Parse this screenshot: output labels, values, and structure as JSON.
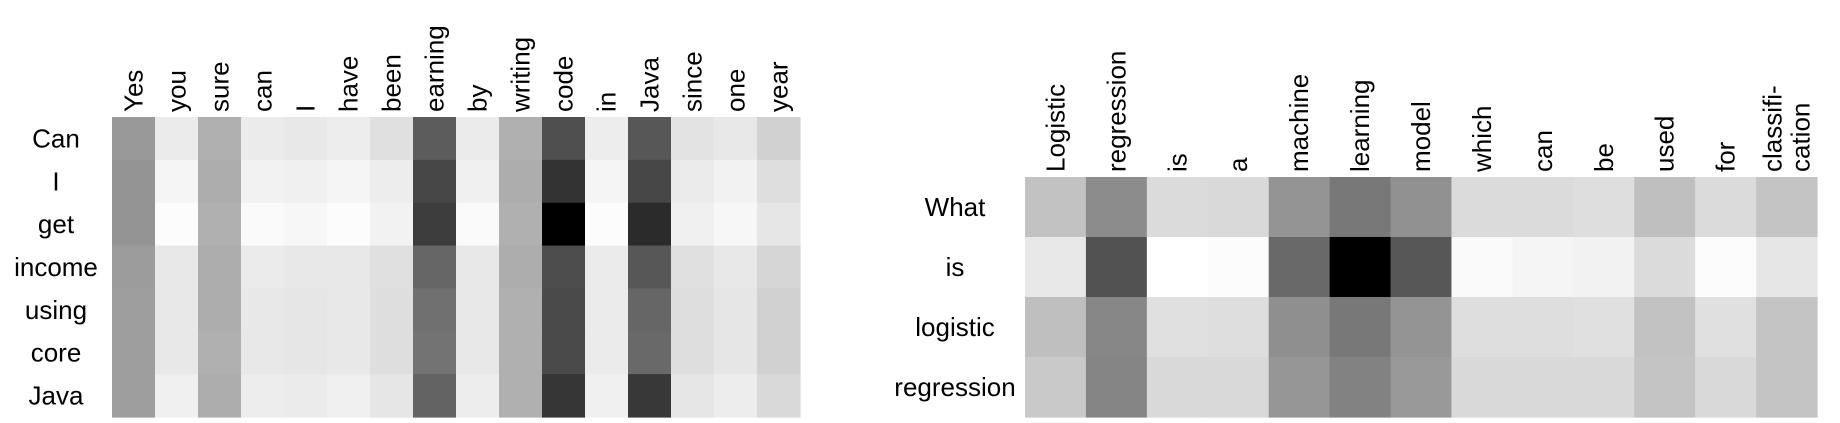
{
  "chart_data": [
    {
      "type": "heatmap",
      "columns": [
        "Yes",
        "you",
        "sure",
        "can",
        "I",
        "have",
        "been",
        "earning",
        "by",
        "writing",
        "code",
        "in",
        "Java",
        "since",
        "one",
        "year"
      ],
      "rows": [
        "Can",
        "I",
        "get",
        "income",
        "using",
        "core",
        "Java"
      ],
      "values": [
        [
          40,
          8,
          31,
          8,
          9,
          7,
          12,
          64,
          8,
          31,
          69,
          7,
          66,
          11,
          9,
          18
        ],
        [
          42,
          4,
          32,
          5,
          6,
          4,
          7,
          72,
          6,
          32,
          80,
          4,
          72,
          8,
          5,
          13
        ],
        [
          42,
          1,
          31,
          2,
          3,
          1,
          5,
          76,
          2,
          31,
          100,
          1,
          83,
          6,
          3,
          10
        ],
        [
          39,
          9,
          32,
          8,
          9,
          9,
          12,
          60,
          9,
          32,
          70,
          8,
          66,
          12,
          9,
          16
        ],
        [
          38,
          9,
          32,
          9,
          10,
          9,
          13,
          56,
          9,
          31,
          71,
          8,
          60,
          13,
          10,
          18
        ],
        [
          38,
          9,
          31,
          9,
          10,
          9,
          13,
          55,
          9,
          31,
          71,
          8,
          59,
          13,
          10,
          18
        ],
        [
          38,
          6,
          32,
          7,
          8,
          6,
          10,
          61,
          7,
          31,
          79,
          6,
          78,
          10,
          7,
          15
        ]
      ],
      "color_scale": "white-to-black"
    },
    {
      "type": "heatmap",
      "columns": [
        "Logistic",
        "regression",
        "is",
        "a",
        "machine",
        "learning",
        "model",
        "which",
        "can",
        "be",
        "used",
        "for",
        "classifi-\ncation"
      ],
      "rows": [
        "What",
        "is",
        "logistic",
        "regression"
      ],
      "values": [
        [
          24,
          45,
          14,
          15,
          42,
          53,
          43,
          14,
          14,
          13,
          25,
          14,
          23
        ],
        [
          9,
          68,
          0,
          1,
          59,
          100,
          66,
          2,
          4,
          5,
          14,
          1,
          10
        ],
        [
          25,
          47,
          12,
          13,
          44,
          53,
          42,
          13,
          13,
          12,
          24,
          12,
          23
        ],
        [
          21,
          48,
          15,
          15,
          41,
          49,
          40,
          15,
          15,
          15,
          23,
          15,
          23
        ]
      ],
      "color_scale": "white-to-black"
    }
  ]
}
